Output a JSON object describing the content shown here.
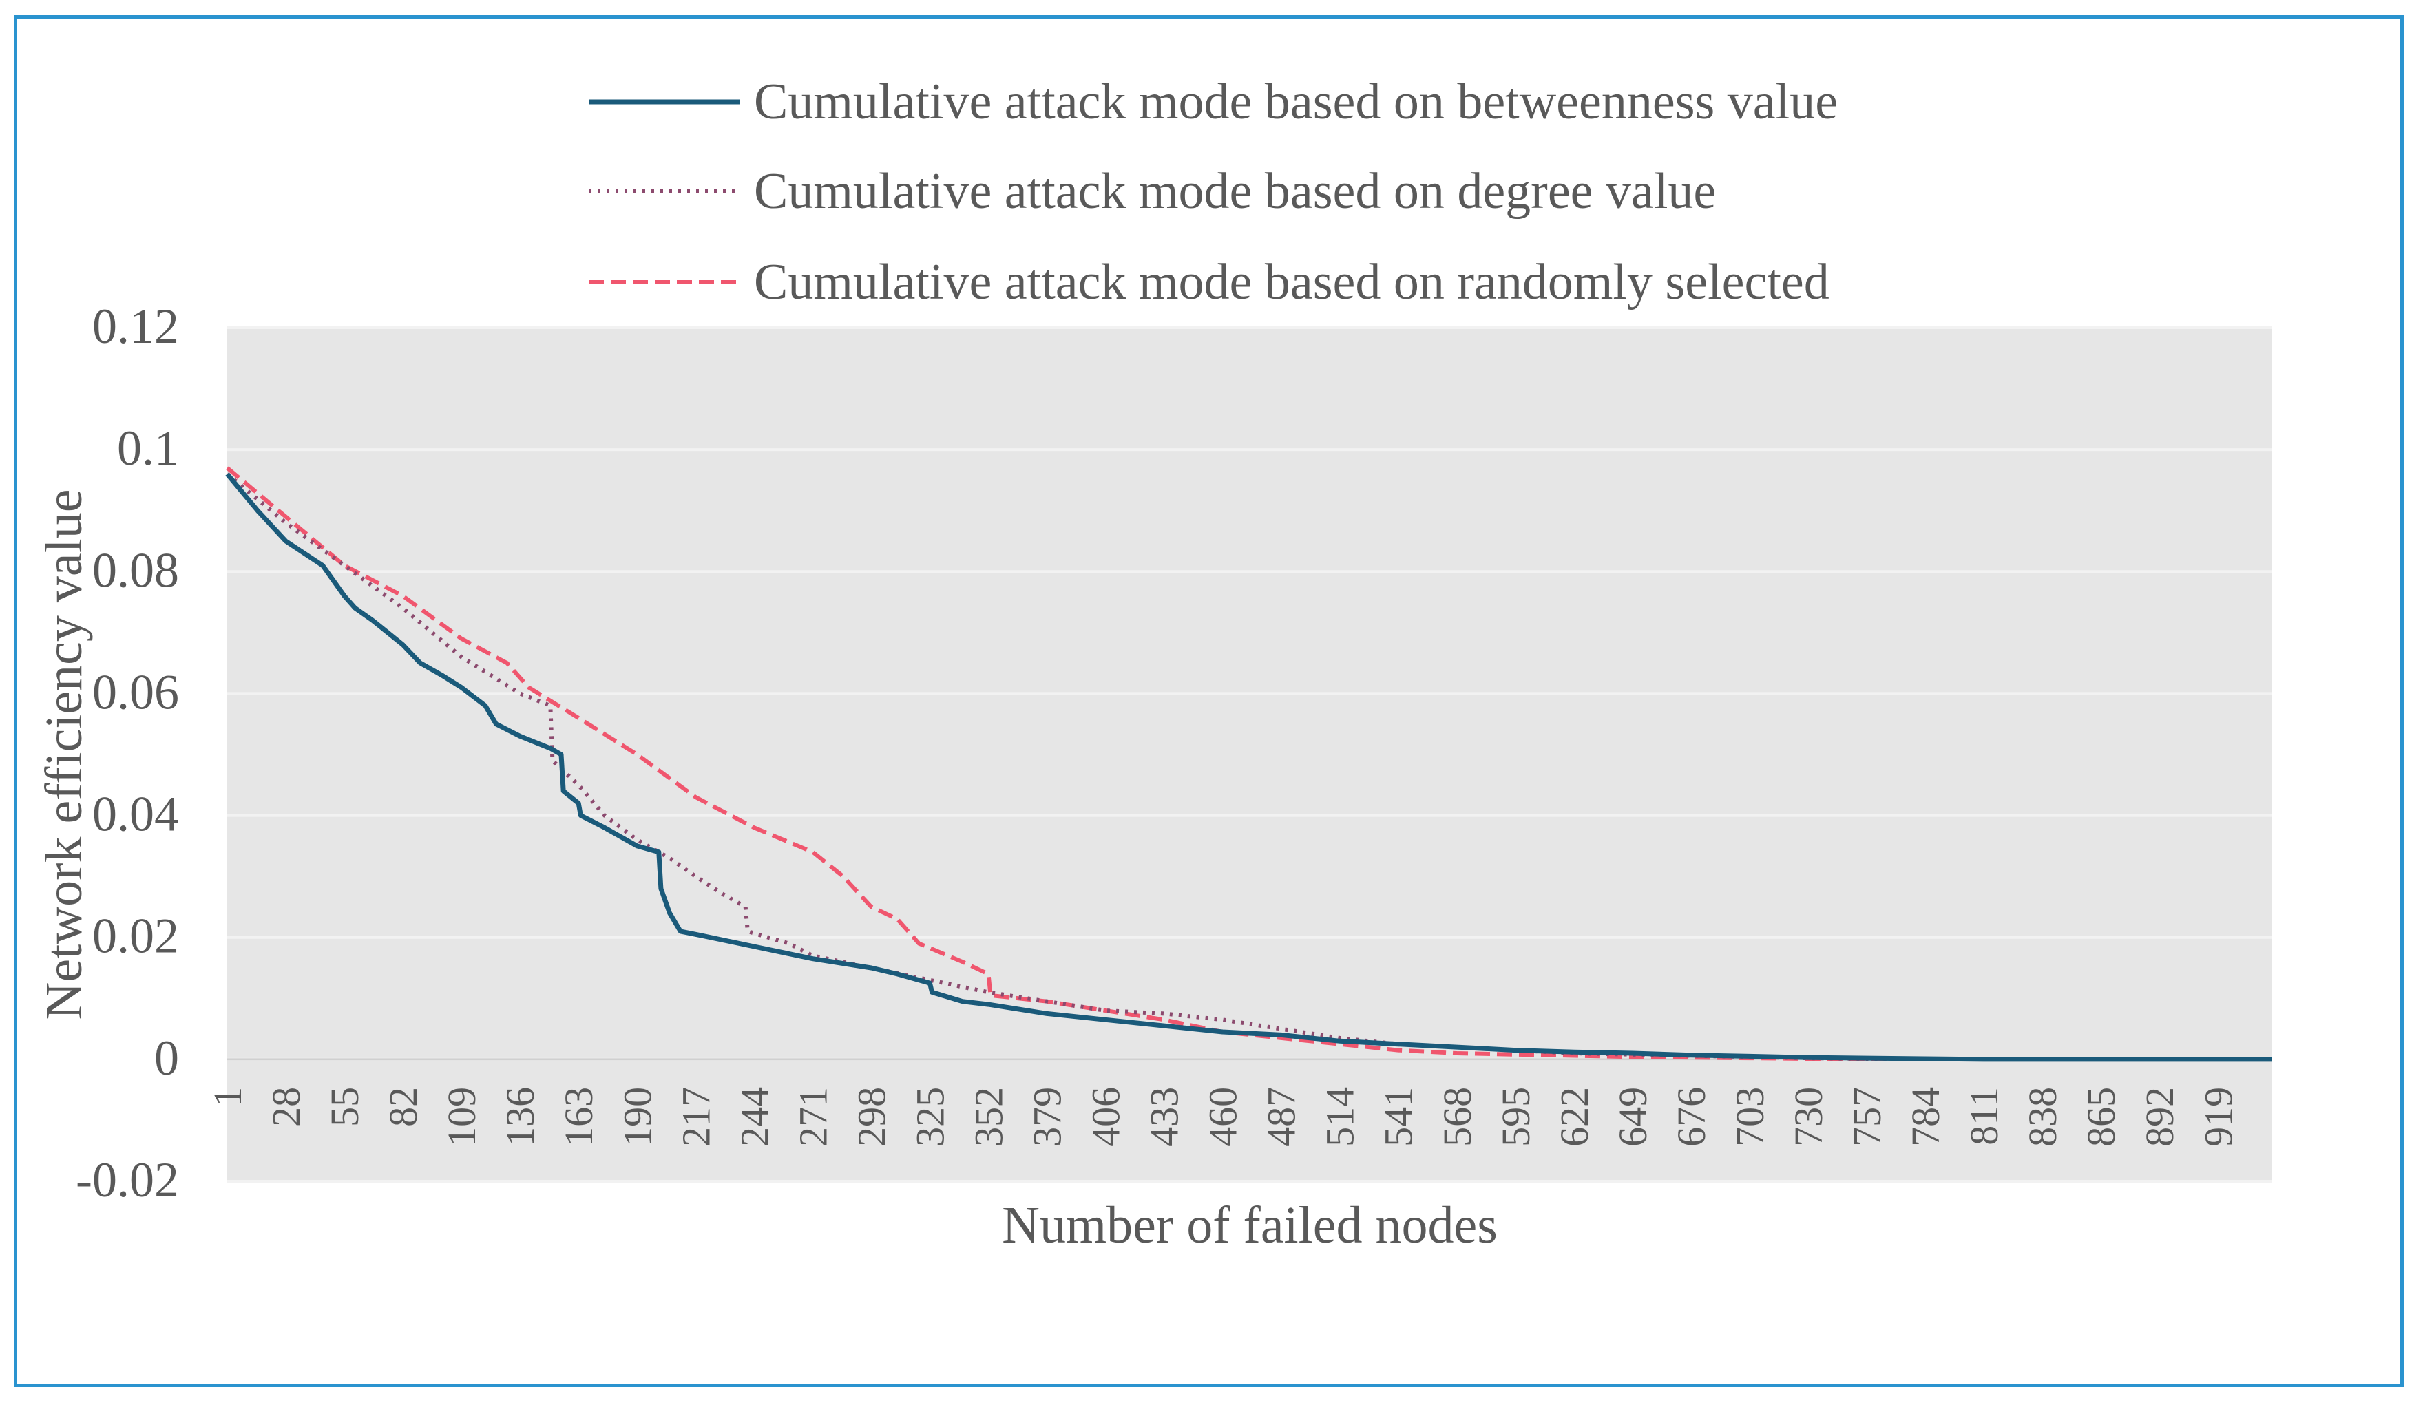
{
  "chart_data": {
    "type": "line",
    "title": "",
    "xlabel": "Number of failed nodes",
    "ylabel": "Network efficiency value",
    "x_range": [
      1,
      944
    ],
    "ylim": [
      -0.02,
      0.12
    ],
    "y_ticks": [
      -0.02,
      0,
      0.02,
      0.04,
      0.06,
      0.08,
      0.1,
      0.12
    ],
    "y_tick_labels": [
      "-0.02",
      "0",
      "0.02",
      "0.04",
      "0.06",
      "0.08",
      "0.1",
      "0.12"
    ],
    "x_tick_labels": [
      "1",
      "28",
      "55",
      "82",
      "109",
      "136",
      "163",
      "190",
      "217",
      "244",
      "271",
      "298",
      "325",
      "352",
      "379",
      "406",
      "433",
      "460",
      "487",
      "514",
      "541",
      "568",
      "595",
      "622",
      "649",
      "676",
      "703",
      "730",
      "757",
      "784",
      "811",
      "838",
      "865",
      "892",
      "919"
    ],
    "grid": true,
    "legend_position": "top",
    "series": [
      {
        "name": "Cumulative attack mode based on betweenness value",
        "color": "#1a5a7a",
        "style": "solid",
        "points": [
          [
            1,
            0.096
          ],
          [
            15,
            0.09
          ],
          [
            28,
            0.085
          ],
          [
            45,
            0.081
          ],
          [
            55,
            0.076
          ],
          [
            60,
            0.074
          ],
          [
            68,
            0.072
          ],
          [
            75,
            0.07
          ],
          [
            82,
            0.068
          ],
          [
            90,
            0.065
          ],
          [
            100,
            0.063
          ],
          [
            109,
            0.061
          ],
          [
            120,
            0.058
          ],
          [
            125,
            0.055
          ],
          [
            136,
            0.053
          ],
          [
            150,
            0.051
          ],
          [
            155,
            0.05
          ],
          [
            156,
            0.044
          ],
          [
            163,
            0.042
          ],
          [
            164,
            0.04
          ],
          [
            175,
            0.038
          ],
          [
            190,
            0.035
          ],
          [
            200,
            0.034
          ],
          [
            201,
            0.028
          ],
          [
            205,
            0.024
          ],
          [
            210,
            0.021
          ],
          [
            217,
            0.0205
          ],
          [
            244,
            0.0185
          ],
          [
            271,
            0.0165
          ],
          [
            298,
            0.015
          ],
          [
            310,
            0.014
          ],
          [
            320,
            0.013
          ],
          [
            325,
            0.0125
          ],
          [
            326,
            0.011
          ],
          [
            340,
            0.0095
          ],
          [
            352,
            0.009
          ],
          [
            379,
            0.0075
          ],
          [
            406,
            0.0065
          ],
          [
            433,
            0.0055
          ],
          [
            460,
            0.0045
          ],
          [
            487,
            0.004
          ],
          [
            514,
            0.003
          ],
          [
            541,
            0.0025
          ],
          [
            568,
            0.002
          ],
          [
            595,
            0.0015
          ],
          [
            622,
            0.0012
          ],
          [
            649,
            0.001
          ],
          [
            676,
            0.0007
          ],
          [
            703,
            0.0005
          ],
          [
            730,
            0.0003
          ],
          [
            757,
            0.0002
          ],
          [
            784,
            0.0001
          ],
          [
            811,
            0
          ],
          [
            944,
            0
          ]
        ]
      },
      {
        "name": "Cumulative attack mode based on degree value",
        "color": "#8c4a6e",
        "style": "dotted",
        "points": [
          [
            1,
            0.096
          ],
          [
            28,
            0.088
          ],
          [
            55,
            0.081
          ],
          [
            82,
            0.074
          ],
          [
            109,
            0.066
          ],
          [
            136,
            0.06
          ],
          [
            150,
            0.058
          ],
          [
            151,
            0.049
          ],
          [
            163,
            0.045
          ],
          [
            175,
            0.04
          ],
          [
            190,
            0.036
          ],
          [
            205,
            0.033
          ],
          [
            217,
            0.03
          ],
          [
            230,
            0.027
          ],
          [
            240,
            0.025
          ],
          [
            241,
            0.021
          ],
          [
            260,
            0.019
          ],
          [
            271,
            0.017
          ],
          [
            298,
            0.015
          ],
          [
            325,
            0.013
          ],
          [
            352,
            0.011
          ],
          [
            379,
            0.0095
          ],
          [
            406,
            0.008
          ],
          [
            433,
            0.0075
          ],
          [
            460,
            0.0065
          ],
          [
            487,
            0.005
          ],
          [
            514,
            0.0035
          ],
          [
            541,
            0.0025
          ],
          [
            568,
            0.002
          ],
          [
            595,
            0.0015
          ],
          [
            622,
            0.001
          ],
          [
            649,
            0.0008
          ],
          [
            676,
            0.0006
          ],
          [
            703,
            0.0004
          ],
          [
            730,
            0.0002
          ],
          [
            757,
            0.0001
          ],
          [
            784,
            0
          ],
          [
            944,
            0
          ]
        ]
      },
      {
        "name": "Cumulative attack mode based on randomly selected",
        "color": "#f0566e",
        "style": "dashed",
        "points": [
          [
            1,
            0.097
          ],
          [
            28,
            0.089
          ],
          [
            55,
            0.081
          ],
          [
            82,
            0.076
          ],
          [
            109,
            0.069
          ],
          [
            130,
            0.065
          ],
          [
            140,
            0.061
          ],
          [
            163,
            0.056
          ],
          [
            190,
            0.05
          ],
          [
            217,
            0.043
          ],
          [
            244,
            0.038
          ],
          [
            271,
            0.034
          ],
          [
            285,
            0.03
          ],
          [
            298,
            0.025
          ],
          [
            310,
            0.023
          ],
          [
            320,
            0.019
          ],
          [
            340,
            0.016
          ],
          [
            352,
            0.014
          ],
          [
            353,
            0.0105
          ],
          [
            379,
            0.0095
          ],
          [
            406,
            0.008
          ],
          [
            433,
            0.0065
          ],
          [
            460,
            0.0045
          ],
          [
            487,
            0.0035
          ],
          [
            514,
            0.0025
          ],
          [
            541,
            0.0015
          ],
          [
            568,
            0.001
          ],
          [
            595,
            0.0008
          ],
          [
            622,
            0.0006
          ],
          [
            649,
            0.0004
          ],
          [
            676,
            0.0003
          ],
          [
            703,
            0.0002
          ],
          [
            730,
            0.0001
          ],
          [
            757,
            0
          ],
          [
            944,
            0
          ]
        ]
      }
    ]
  }
}
